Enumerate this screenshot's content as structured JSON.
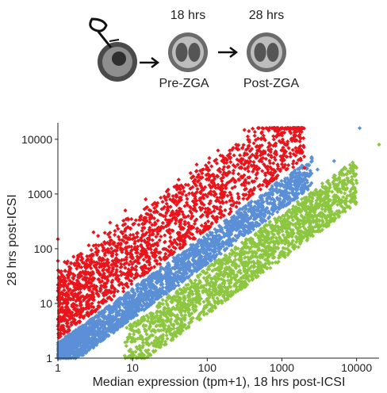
{
  "schematic": {
    "stage1_time": "18 hrs",
    "stage2_time": "28 hrs",
    "stage1_label": "Pre-ZGA",
    "stage2_label": "Post-ZGA"
  },
  "chart_data": {
    "type": "scatter",
    "title": "",
    "xlabel": "Median expression (tpm+1), 18 hrs post-ICSI",
    "ylabel": "28 hrs post-ICSI",
    "xscale": "log",
    "yscale": "log",
    "xlim": [
      1,
      20000
    ],
    "ylim": [
      1,
      20000
    ],
    "xticks": [
      1,
      10,
      100,
      1000,
      10000
    ],
    "xtick_labels": [
      "1",
      "10",
      "100",
      "1000",
      "10000"
    ],
    "yticks": [
      1,
      10,
      100,
      1000,
      10000
    ],
    "ytick_labels": [
      "1",
      "10",
      "100",
      "1000",
      "10000"
    ],
    "grid": false,
    "legend": "none",
    "series": [
      {
        "color": "#e8151c",
        "description_range": "upregulated: y well above x",
        "points": [
          [
            1.0,
            60
          ],
          [
            1.0,
            150
          ],
          [
            1.2,
            30
          ],
          [
            1.5,
            12
          ],
          [
            2,
            80
          ],
          [
            2.5,
            20
          ],
          [
            3,
            200
          ],
          [
            4,
            40
          ],
          [
            5,
            300
          ],
          [
            6,
            90
          ],
          [
            8,
            500
          ],
          [
            10,
            150
          ],
          [
            15,
            800
          ],
          [
            20,
            300
          ],
          [
            30,
            1200
          ],
          [
            50,
            600
          ],
          [
            80,
            2000
          ],
          [
            100,
            900
          ],
          [
            200,
            2500
          ],
          [
            300,
            1500
          ],
          [
            500,
            4000
          ],
          [
            800,
            2500
          ],
          [
            1000,
            3500
          ],
          [
            2000,
            3000
          ]
        ]
      },
      {
        "color": "#5b8fd6",
        "description_range": "unchanged: y near x",
        "points": [
          [
            1,
            1
          ],
          [
            1.5,
            2
          ],
          [
            2,
            3
          ],
          [
            3,
            2.5
          ],
          [
            5,
            6
          ],
          [
            8,
            7
          ],
          [
            10,
            12
          ],
          [
            20,
            18
          ],
          [
            50,
            55
          ],
          [
            100,
            110
          ],
          [
            300,
            280
          ],
          [
            1000,
            1100
          ],
          [
            3000,
            2800
          ],
          [
            5000,
            4000
          ],
          [
            11000,
            16000
          ]
        ]
      },
      {
        "color": "#8dc641",
        "description_range": "downregulated: y well below x",
        "points": [
          [
            8,
            1
          ],
          [
            10,
            2
          ],
          [
            20,
            3
          ],
          [
            30,
            8
          ],
          [
            50,
            10
          ],
          [
            100,
            30
          ],
          [
            200,
            40
          ],
          [
            300,
            100
          ],
          [
            500,
            120
          ],
          [
            1000,
            300
          ],
          [
            2000,
            600
          ],
          [
            3000,
            1000
          ],
          [
            5000,
            1500
          ],
          [
            10000,
            3000
          ],
          [
            20000,
            8000
          ]
        ]
      }
    ]
  }
}
